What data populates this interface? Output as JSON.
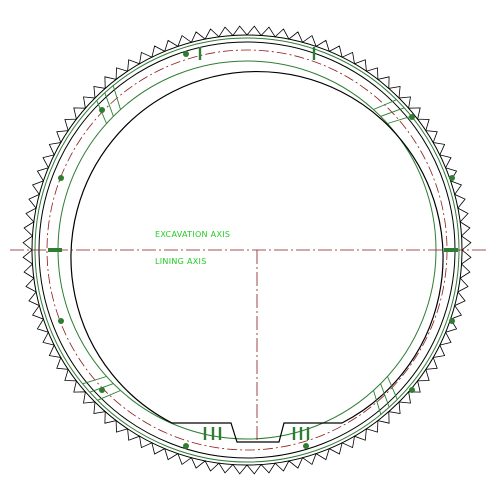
{
  "drawing": {
    "labels": {
      "excavation_axis": "EXCAVATION AXIS",
      "lining_axis": "LINING AXIS"
    },
    "colors": {
      "background": "#ffffff",
      "outline": "#000000",
      "segment_lines": "#2e7d32",
      "axis_lines": "#8b1a1a",
      "label_text": "#22cc22"
    },
    "icons": {
      "cutter_teeth": "sawtooth-ring-icon",
      "bolt_markers": "dot-icon"
    }
  }
}
